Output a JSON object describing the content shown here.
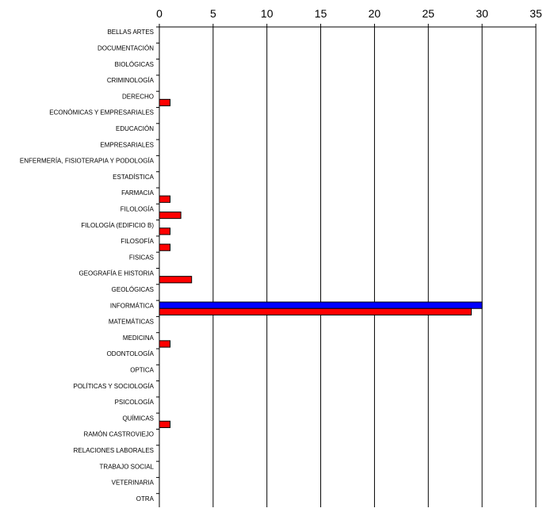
{
  "chart_data": {
    "type": "bar",
    "orientation": "horizontal",
    "title": "",
    "xlabel": "",
    "ylabel": "",
    "xlim": [
      0,
      35
    ],
    "x_ticks": [
      "0",
      "5",
      "10",
      "15",
      "20",
      "25",
      "30",
      "35"
    ],
    "x_axis_position": "top",
    "grid": "vertical",
    "legend": "none",
    "categories": [
      "BELLAS ARTES",
      "DOCUMENTACIÓN",
      "BIOLÓGICAS",
      "CRIMINOLOGÍA",
      "DERECHO",
      "ECONÓMICAS Y EMPRESARIALES",
      "EDUCACIÓN",
      "EMPRESARIALES",
      "ENFERMERÍA, FISIOTERAPIA Y PODOLOGÍA",
      "ESTADÍSTICA",
      "FARMACIA",
      "FILOLOGÍA",
      "FILOLOGÍA (EDIFICIO B)",
      "FILOSOFÍA",
      "FISICAS",
      "GEOGRAFÍA E HISTORIA",
      "GEOLÓGICAS",
      "INFORMÁTICA",
      "MATEMÁTICAS",
      "MEDICINA",
      "ODONTOLOGÍA",
      "OPTICA",
      "POLÍTICAS Y SOCIOLOGÍA",
      "PSICOLOGÍA",
      "QUÍMICAS",
      "RAMÓN CASTROVIEJO",
      "RELACIONES LABORALES",
      "TRABAJO SOCIAL",
      "VETERINARIA",
      "OTRA"
    ],
    "series": [
      {
        "color": "#0000ff",
        "values": [
          0,
          0,
          0,
          0,
          0,
          0,
          0,
          0,
          0,
          0,
          0,
          0,
          0,
          0,
          0,
          0,
          0,
          30,
          0,
          0,
          0,
          0,
          0,
          0,
          0,
          0,
          0,
          0,
          0,
          0
        ]
      },
      {
        "color": "#ff0000",
        "values": [
          0,
          0,
          0,
          0,
          1,
          0,
          0,
          0,
          0,
          0,
          1,
          2,
          1,
          1,
          0,
          3,
          0,
          29,
          0,
          1,
          0,
          0,
          0,
          0,
          1,
          0,
          0,
          0,
          0,
          0
        ]
      }
    ]
  }
}
